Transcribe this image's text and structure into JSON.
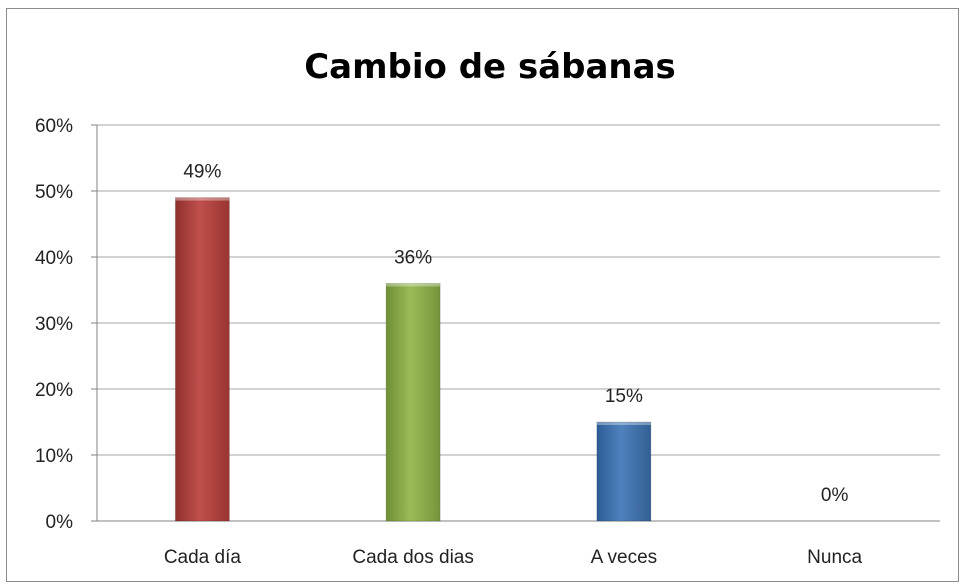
{
  "chart_data": {
    "type": "bar",
    "title": "Cambio de sábanas",
    "categories": [
      "Cada día",
      "Cada dos dias",
      "A veces",
      "Nunca"
    ],
    "values": [
      49,
      36,
      15,
      0
    ],
    "data_labels": [
      "49%",
      "36%",
      "15%",
      "0%"
    ],
    "y_ticks": [
      "0%",
      "10%",
      "20%",
      "30%",
      "40%",
      "50%",
      "60%"
    ],
    "ylim": [
      0,
      60
    ],
    "grid": true,
    "legend": "none",
    "colors": [
      "#c0504d",
      "#9bbb59",
      "#4f81bd",
      "#8064a2"
    ]
  }
}
